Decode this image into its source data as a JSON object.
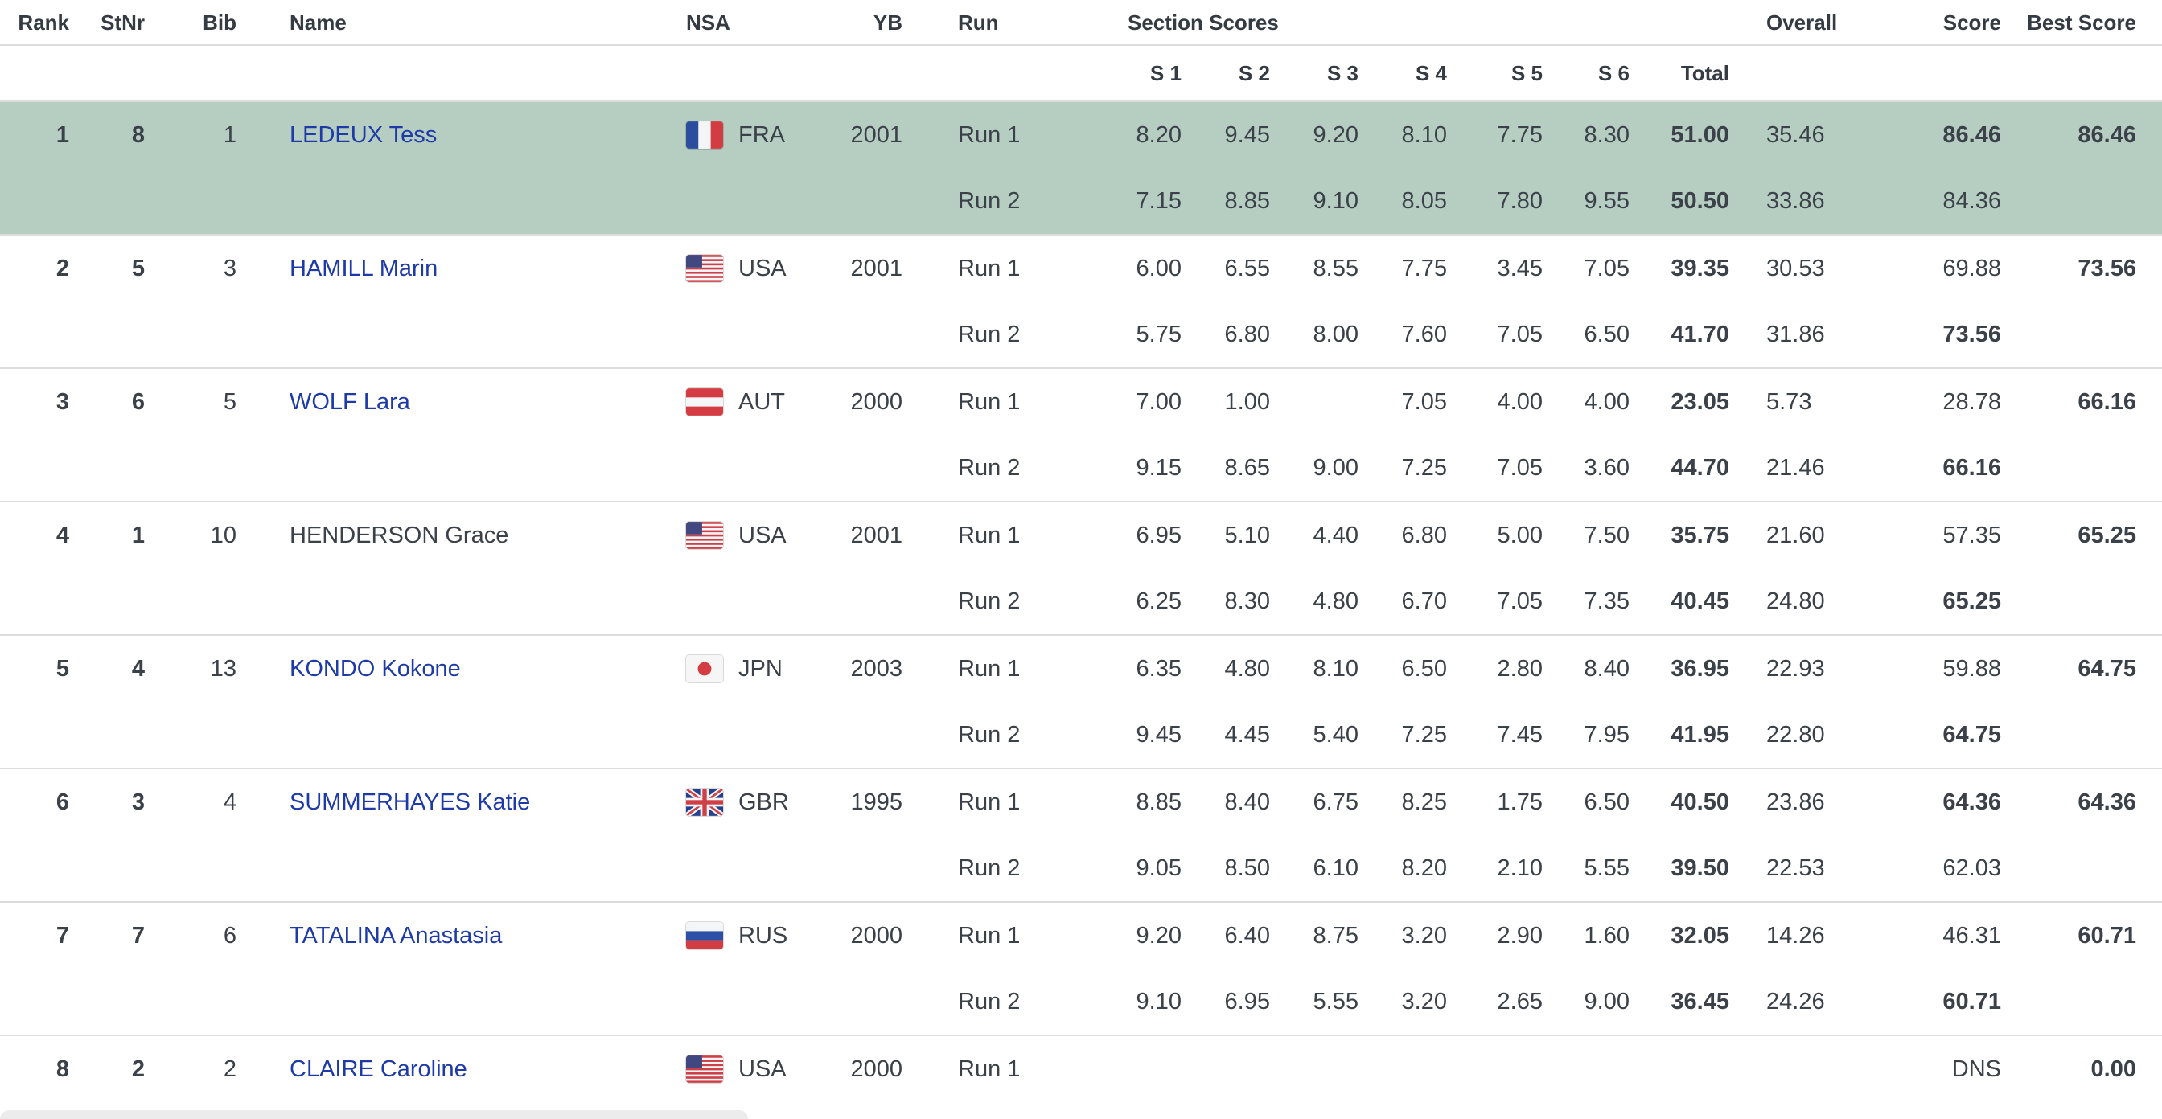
{
  "colors": {
    "highlight_row": "#b6cdc2",
    "link": "#1e3aa6",
    "text": "#3b4148",
    "header_text": "#343b43",
    "divider": "#dcdcdc"
  },
  "table": {
    "header": {
      "rank": "Rank",
      "stnr": "StNr",
      "bib": "Bib",
      "name": "Name",
      "nsa": "NSA",
      "yb": "YB",
      "run": "Run",
      "section_scores": "Section Scores",
      "overall": "Overall",
      "score": "Score",
      "best_score": "Best Score"
    },
    "section_cols": [
      "S 1",
      "S 2",
      "S 3",
      "S 4",
      "S 5",
      "S 6",
      "Total"
    ],
    "rows": [
      {
        "rank": "1",
        "stnr": "8",
        "bib": "1",
        "name": "LEDEUX Tess",
        "link": true,
        "nsa": "FRA",
        "flag": "fra",
        "yb": "2001",
        "highlight": true,
        "best_score": "86.46",
        "runs": [
          {
            "label": "Run 1",
            "sections": [
              "8.20",
              "9.45",
              "9.20",
              "8.10",
              "7.75",
              "8.30"
            ],
            "total": "51.00",
            "overall": "35.46",
            "score": "86.46",
            "score_bold": true
          },
          {
            "label": "Run 2",
            "sections": [
              "7.15",
              "8.85",
              "9.10",
              "8.05",
              "7.80",
              "9.55"
            ],
            "total": "50.50",
            "overall": "33.86",
            "score": "84.36",
            "score_bold": false
          }
        ]
      },
      {
        "rank": "2",
        "stnr": "5",
        "bib": "3",
        "name": "HAMILL Marin",
        "link": true,
        "nsa": "USA",
        "flag": "usa",
        "yb": "2001",
        "highlight": false,
        "best_score": "73.56",
        "runs": [
          {
            "label": "Run 1",
            "sections": [
              "6.00",
              "6.55",
              "8.55",
              "7.75",
              "3.45",
              "7.05"
            ],
            "total": "39.35",
            "overall": "30.53",
            "score": "69.88",
            "score_bold": false
          },
          {
            "label": "Run 2",
            "sections": [
              "5.75",
              "6.80",
              "8.00",
              "7.60",
              "7.05",
              "6.50"
            ],
            "total": "41.70",
            "overall": "31.86",
            "score": "73.56",
            "score_bold": true
          }
        ]
      },
      {
        "rank": "3",
        "stnr": "6",
        "bib": "5",
        "name": "WOLF Lara",
        "link": true,
        "nsa": "AUT",
        "flag": "aut",
        "yb": "2000",
        "highlight": false,
        "best_score": "66.16",
        "runs": [
          {
            "label": "Run 1",
            "sections": [
              "7.00",
              "1.00",
              "",
              "7.05",
              "4.00",
              "4.00"
            ],
            "total": "23.05",
            "overall": "5.73",
            "score": "28.78",
            "score_bold": false
          },
          {
            "label": "Run 2",
            "sections": [
              "9.15",
              "8.65",
              "9.00",
              "7.25",
              "7.05",
              "3.60"
            ],
            "total": "44.70",
            "overall": "21.46",
            "score": "66.16",
            "score_bold": true
          }
        ]
      },
      {
        "rank": "4",
        "stnr": "1",
        "bib": "10",
        "name": "HENDERSON Grace",
        "link": false,
        "nsa": "USA",
        "flag": "usa",
        "yb": "2001",
        "highlight": false,
        "best_score": "65.25",
        "runs": [
          {
            "label": "Run 1",
            "sections": [
              "6.95",
              "5.10",
              "4.40",
              "6.80",
              "5.00",
              "7.50"
            ],
            "total": "35.75",
            "overall": "21.60",
            "score": "57.35",
            "score_bold": false
          },
          {
            "label": "Run 2",
            "sections": [
              "6.25",
              "8.30",
              "4.80",
              "6.70",
              "7.05",
              "7.35"
            ],
            "total": "40.45",
            "overall": "24.80",
            "score": "65.25",
            "score_bold": true
          }
        ]
      },
      {
        "rank": "5",
        "stnr": "4",
        "bib": "13",
        "name": "KONDO Kokone",
        "link": true,
        "nsa": "JPN",
        "flag": "jpn",
        "yb": "2003",
        "highlight": false,
        "best_score": "64.75",
        "runs": [
          {
            "label": "Run 1",
            "sections": [
              "6.35",
              "4.80",
              "8.10",
              "6.50",
              "2.80",
              "8.40"
            ],
            "total": "36.95",
            "overall": "22.93",
            "score": "59.88",
            "score_bold": false
          },
          {
            "label": "Run 2",
            "sections": [
              "9.45",
              "4.45",
              "5.40",
              "7.25",
              "7.45",
              "7.95"
            ],
            "total": "41.95",
            "overall": "22.80",
            "score": "64.75",
            "score_bold": true
          }
        ]
      },
      {
        "rank": "6",
        "stnr": "3",
        "bib": "4",
        "name": "SUMMERHAYES Katie",
        "link": true,
        "nsa": "GBR",
        "flag": "gbr",
        "yb": "1995",
        "highlight": false,
        "best_score": "64.36",
        "runs": [
          {
            "label": "Run 1",
            "sections": [
              "8.85",
              "8.40",
              "6.75",
              "8.25",
              "1.75",
              "6.50"
            ],
            "total": "40.50",
            "overall": "23.86",
            "score": "64.36",
            "score_bold": true
          },
          {
            "label": "Run 2",
            "sections": [
              "9.05",
              "8.50",
              "6.10",
              "8.20",
              "2.10",
              "5.55"
            ],
            "total": "39.50",
            "overall": "22.53",
            "score": "62.03",
            "score_bold": false
          }
        ]
      },
      {
        "rank": "7",
        "stnr": "7",
        "bib": "6",
        "name": "TATALINA Anastasia",
        "link": true,
        "nsa": "RUS",
        "flag": "rus",
        "yb": "2000",
        "highlight": false,
        "best_score": "60.71",
        "runs": [
          {
            "label": "Run 1",
            "sections": [
              "9.20",
              "6.40",
              "8.75",
              "3.20",
              "2.90",
              "1.60"
            ],
            "total": "32.05",
            "overall": "14.26",
            "score": "46.31",
            "score_bold": false
          },
          {
            "label": "Run 2",
            "sections": [
              "9.10",
              "6.95",
              "5.55",
              "3.20",
              "2.65",
              "9.00"
            ],
            "total": "36.45",
            "overall": "24.26",
            "score": "60.71",
            "score_bold": true
          }
        ]
      },
      {
        "rank": "8",
        "stnr": "2",
        "bib": "2",
        "name": "CLAIRE Caroline",
        "link": true,
        "nsa": "USA",
        "flag": "usa",
        "yb": "2000",
        "highlight": false,
        "best_score": "0.00",
        "runs": [
          {
            "label": "Run 1",
            "sections": [
              "",
              "",
              "",
              "",
              "",
              ""
            ],
            "total": "",
            "overall": "",
            "score": "DNS",
            "score_bold": false
          }
        ]
      }
    ]
  }
}
